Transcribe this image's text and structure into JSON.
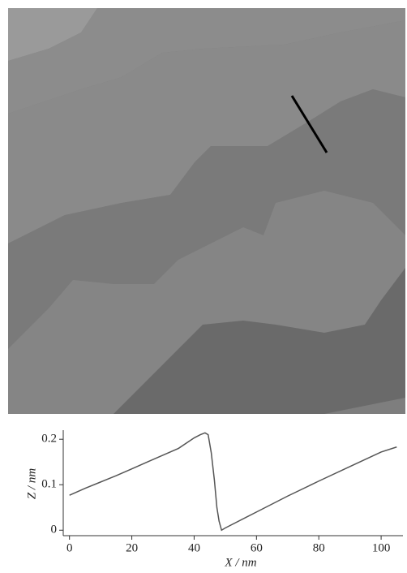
{
  "chart_data": {
    "type": "line",
    "x_label": "X / nm",
    "y_label": "Z / nm",
    "x": [
      0,
      5,
      10,
      15,
      20,
      25,
      30,
      35,
      40,
      42,
      43.5,
      44.5,
      45.5,
      46.5,
      47.3,
      48,
      48.8,
      50,
      60,
      70,
      80,
      90,
      100,
      105
    ],
    "series": [
      {
        "color": "#555555",
        "values": [
          0.077,
          0.092,
          0.106,
          0.12,
          0.135,
          0.15,
          0.165,
          0.18,
          0.203,
          0.21,
          0.214,
          0.21,
          0.17,
          0.11,
          0.05,
          0.02,
          0.0,
          0.005,
          0.04,
          0.075,
          0.108,
          0.14,
          0.172,
          0.183
        ]
      }
    ],
    "xlim": [
      -2,
      107
    ],
    "ylim": [
      -0.012,
      0.22
    ],
    "xticks": [
      0,
      20,
      40,
      60,
      80,
      100
    ],
    "yticks": [
      0,
      0.1,
      0.2
    ]
  }
}
